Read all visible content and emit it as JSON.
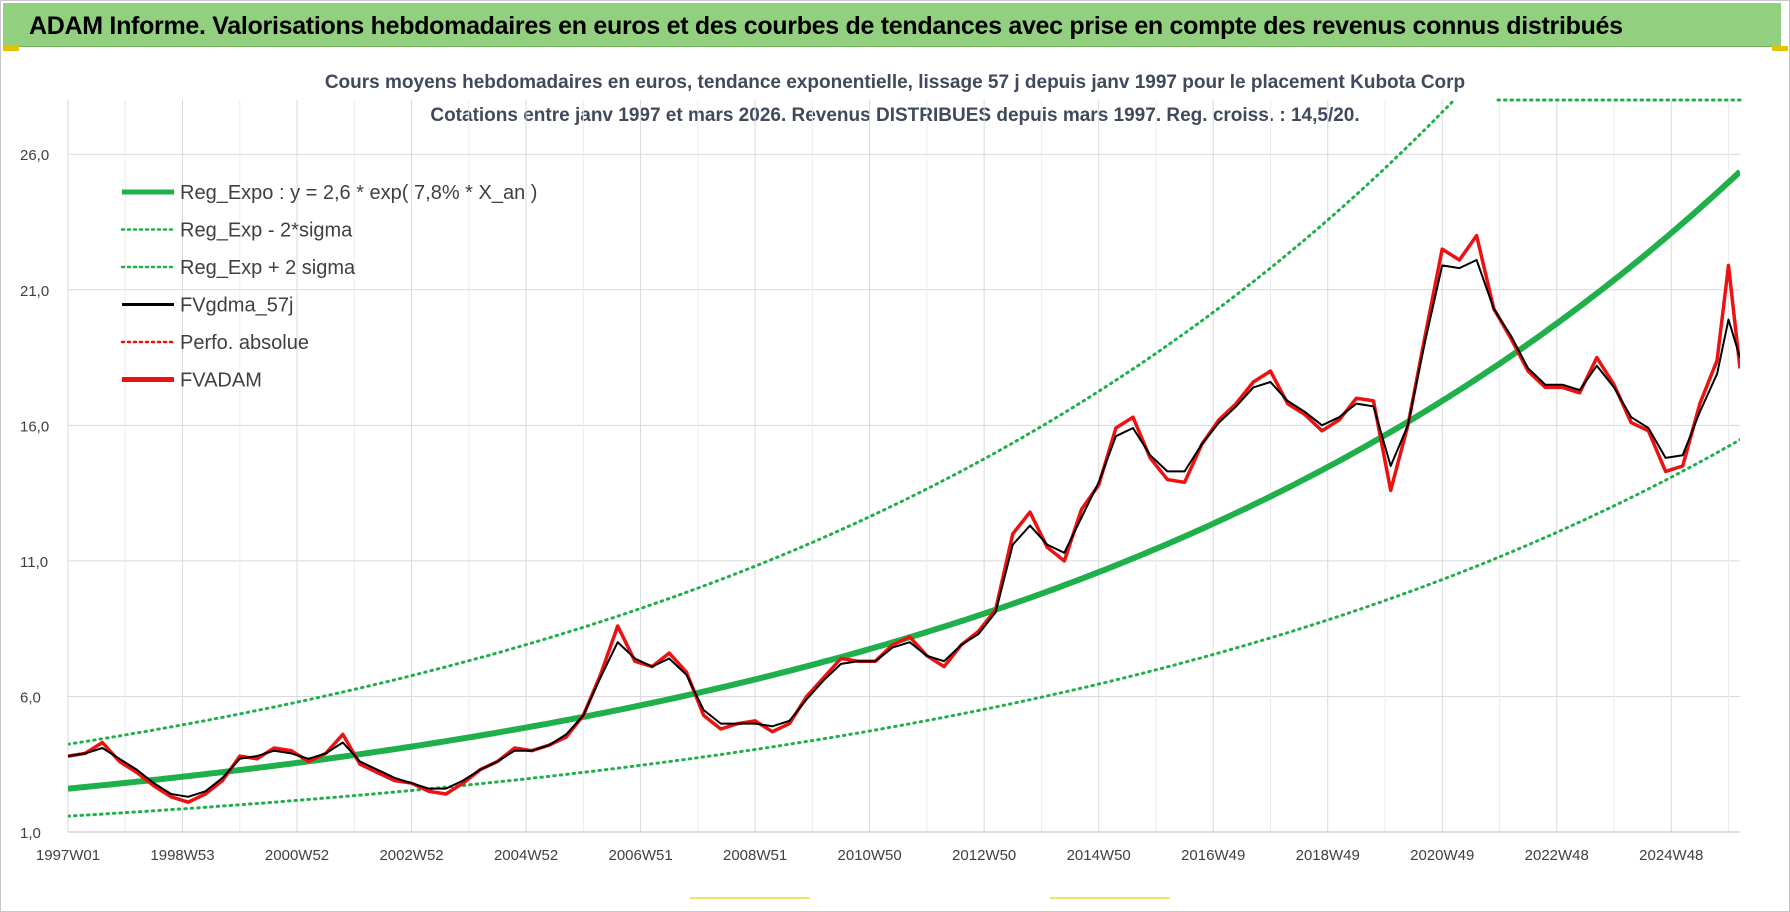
{
  "header": {
    "title": "ADAM Informe. Valorisations hebdomadaires en euros et des courbes de tendances avec prise en compte des revenus connus distribués"
  },
  "colors": {
    "header_bg": "#92d07f",
    "trend": "#1fb04b",
    "trend_band": "#1fb04b",
    "smoothed": "#000000",
    "fvadam": "#ee1111",
    "perfo": "#ee1111",
    "grid": "#d9d9d9"
  },
  "chart_data": {
    "type": "line",
    "title": "Cours moyens hebdomadaires en euros, tendance exponentielle, lissage 57 j depuis janv 1997  pour le placement Kubota Corp",
    "subtitle": "Cotations entre janv 1997 et mars 2026. Revenus DISTRIBUES depuis mars 1997. Reg. croiss. : 14,5/20.",
    "xlabel": "",
    "ylabel": "",
    "xlim": [
      1997.0,
      2026.2
    ],
    "ylim": [
      1.0,
      28.0
    ],
    "y_ticks": [
      "1,0",
      "6,0",
      "11,0",
      "16,0",
      "21,0",
      "26,0"
    ],
    "x_ticks": [
      {
        "label": "1997W01",
        "t": 1997.0
      },
      {
        "label": "1998W53",
        "t": 1999.0
      },
      {
        "label": "2000W52",
        "t": 2001.0
      },
      {
        "label": "2002W52",
        "t": 2003.0
      },
      {
        "label": "2004W52",
        "t": 2005.0
      },
      {
        "label": "2006W51",
        "t": 2007.0
      },
      {
        "label": "2008W51",
        "t": 2009.0
      },
      {
        "label": "2010W50",
        "t": 2011.0
      },
      {
        "label": "2012W50",
        "t": 2013.0
      },
      {
        "label": "2014W50",
        "t": 2015.0
      },
      {
        "label": "2016W49",
        "t": 2017.0
      },
      {
        "label": "2018W49",
        "t": 2019.0
      },
      {
        "label": "2020W49",
        "t": 2021.0
      },
      {
        "label": "2022W48",
        "t": 2023.0
      },
      {
        "label": "2024W48",
        "t": 2025.0
      }
    ],
    "grid": true,
    "legend_position": "top-left",
    "legend": [
      {
        "label": "Reg_Expo : y = 2,6 * exp( 7,8% *  X_an )",
        "style": "solid-thick",
        "color": "#1fb04b"
      },
      {
        "label": "Reg_Exp - 2*sigma",
        "style": "dotted",
        "color": "#1fb04b"
      },
      {
        "label": "Reg_Exp + 2 sigma",
        "style": "dotted",
        "color": "#1fb04b"
      },
      {
        "label": "FVgdma_57j",
        "style": "solid",
        "color": "#000000"
      },
      {
        "label": "Perfo. absolue",
        "style": "dotted",
        "color": "#ee1111"
      },
      {
        "label": "FVADAM",
        "style": "solid-thick",
        "color": "#ee1111"
      }
    ],
    "trend": {
      "a": 2.6,
      "rate": 0.078,
      "t0": 1997.0,
      "band_low_factor": 0.61,
      "band_high_factor": 1.63
    },
    "series": [
      {
        "name": "FVADAM",
        "x": [
          1997.0,
          1997.3,
          1997.6,
          1997.9,
          1998.2,
          1998.5,
          1998.8,
          1999.1,
          1999.4,
          1999.7,
          2000.0,
          2000.3,
          2000.6,
          2000.9,
          2001.2,
          2001.5,
          2001.8,
          2002.1,
          2002.4,
          2002.7,
          2003.0,
          2003.3,
          2003.6,
          2003.9,
          2004.2,
          2004.5,
          2004.8,
          2005.1,
          2005.4,
          2005.7,
          2006.0,
          2006.3,
          2006.6,
          2006.9,
          2007.2,
          2007.5,
          2007.8,
          2008.1,
          2008.4,
          2008.7,
          2009.0,
          2009.3,
          2009.6,
          2009.9,
          2010.2,
          2010.5,
          2010.8,
          2011.1,
          2011.4,
          2011.7,
          2012.0,
          2012.3,
          2012.6,
          2012.9,
          2013.2,
          2013.5,
          2013.8,
          2014.1,
          2014.4,
          2014.7,
          2015.0,
          2015.3,
          2015.6,
          2015.9,
          2016.2,
          2016.5,
          2016.8,
          2017.1,
          2017.4,
          2017.7,
          2018.0,
          2018.3,
          2018.6,
          2018.9,
          2019.2,
          2019.5,
          2019.8,
          2020.1,
          2020.4,
          2020.7,
          2021.0,
          2021.3,
          2021.6,
          2021.9,
          2022.2,
          2022.5,
          2022.8,
          2023.1,
          2023.4,
          2023.7,
          2024.0,
          2024.3,
          2024.6,
          2024.9,
          2025.2,
          2025.5,
          2025.8,
          2026.0,
          2026.2
        ],
        "y": [
          3.8,
          3.9,
          4.3,
          3.6,
          3.2,
          2.7,
          2.3,
          2.1,
          2.4,
          2.9,
          3.8,
          3.7,
          4.1,
          4.0,
          3.6,
          3.9,
          4.6,
          3.5,
          3.2,
          2.9,
          2.8,
          2.5,
          2.4,
          2.8,
          3.3,
          3.6,
          4.1,
          4.0,
          4.2,
          4.5,
          5.3,
          6.8,
          8.6,
          7.3,
          7.1,
          7.6,
          6.9,
          5.3,
          4.8,
          5.0,
          5.1,
          4.7,
          5.0,
          6.0,
          6.7,
          7.4,
          7.3,
          7.3,
          7.9,
          8.2,
          7.5,
          7.1,
          7.9,
          8.4,
          9.2,
          12.0,
          12.8,
          11.5,
          11.0,
          12.9,
          13.8,
          15.9,
          16.3,
          14.8,
          14.0,
          13.9,
          15.3,
          16.2,
          16.8,
          17.6,
          18.0,
          16.8,
          16.4,
          15.8,
          16.2,
          17.0,
          16.9,
          13.6,
          16.0,
          19.3,
          22.5,
          22.1,
          23.0,
          20.3,
          19.2,
          18.0,
          17.4,
          17.4,
          17.2,
          18.5,
          17.5,
          16.1,
          15.8,
          14.3,
          14.5,
          16.8,
          18.4,
          21.9,
          18.1
        ]
      },
      {
        "name": "FVgdma_57j",
        "x": [
          1997.0,
          1997.3,
          1997.6,
          1997.9,
          1998.2,
          1998.5,
          1998.8,
          1999.1,
          1999.4,
          1999.7,
          2000.0,
          2000.3,
          2000.6,
          2000.9,
          2001.2,
          2001.5,
          2001.8,
          2002.1,
          2002.4,
          2002.7,
          2003.0,
          2003.3,
          2003.6,
          2003.9,
          2004.2,
          2004.5,
          2004.8,
          2005.1,
          2005.4,
          2005.7,
          2006.0,
          2006.3,
          2006.6,
          2006.9,
          2007.2,
          2007.5,
          2007.8,
          2008.1,
          2008.4,
          2008.7,
          2009.0,
          2009.3,
          2009.6,
          2009.9,
          2010.2,
          2010.5,
          2010.8,
          2011.1,
          2011.4,
          2011.7,
          2012.0,
          2012.3,
          2012.6,
          2012.9,
          2013.2,
          2013.5,
          2013.8,
          2014.1,
          2014.4,
          2014.7,
          2015.0,
          2015.3,
          2015.6,
          2015.9,
          2016.2,
          2016.5,
          2016.8,
          2017.1,
          2017.4,
          2017.7,
          2018.0,
          2018.3,
          2018.6,
          2018.9,
          2019.2,
          2019.5,
          2019.8,
          2020.1,
          2020.4,
          2020.7,
          2021.0,
          2021.3,
          2021.6,
          2021.9,
          2022.2,
          2022.5,
          2022.8,
          2023.1,
          2023.4,
          2023.7,
          2024.0,
          2024.3,
          2024.6,
          2024.9,
          2025.2,
          2025.5,
          2025.8,
          2026.0,
          2026.2
        ],
        "y": [
          3.8,
          3.9,
          4.1,
          3.7,
          3.3,
          2.8,
          2.4,
          2.3,
          2.5,
          3.0,
          3.7,
          3.8,
          4.0,
          3.9,
          3.7,
          3.9,
          4.3,
          3.6,
          3.3,
          3.0,
          2.8,
          2.6,
          2.6,
          2.9,
          3.3,
          3.6,
          4.0,
          4.0,
          4.2,
          4.6,
          5.3,
          6.7,
          8.0,
          7.4,
          7.1,
          7.4,
          6.8,
          5.5,
          5.0,
          5.0,
          5.0,
          4.9,
          5.1,
          5.9,
          6.6,
          7.2,
          7.3,
          7.3,
          7.8,
          8.0,
          7.5,
          7.3,
          7.9,
          8.3,
          9.1,
          11.6,
          12.3,
          11.6,
          11.3,
          12.6,
          13.9,
          15.6,
          15.9,
          14.9,
          14.3,
          14.3,
          15.3,
          16.1,
          16.7,
          17.4,
          17.6,
          16.9,
          16.5,
          16.0,
          16.3,
          16.8,
          16.7,
          14.5,
          16.0,
          19.1,
          21.9,
          21.8,
          22.1,
          20.3,
          19.3,
          18.1,
          17.5,
          17.5,
          17.3,
          18.2,
          17.4,
          16.3,
          15.9,
          14.8,
          14.9,
          16.5,
          17.9,
          19.9,
          18.5
        ]
      }
    ]
  }
}
